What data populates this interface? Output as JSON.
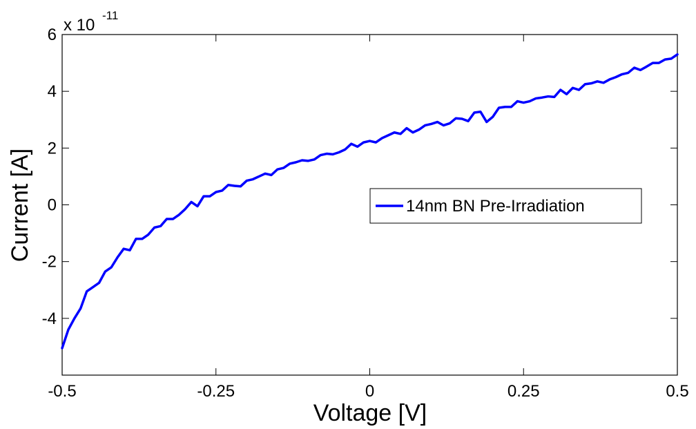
{
  "chart_data": {
    "type": "line",
    "title": "",
    "xlabel": "Voltage [V]",
    "ylabel": "Current [A]",
    "xlim": [
      -0.5,
      0.5
    ],
    "ylim": [
      -6,
      6
    ],
    "y_multiplier_label": "x 10",
    "y_multiplier_exponent": "-11",
    "x_ticks": [
      -0.5,
      -0.25,
      0,
      0.25,
      0.5
    ],
    "x_tick_labels": [
      "-0.5",
      "-0.25",
      "0",
      "0.25",
      "0.5"
    ],
    "y_ticks": [
      -4,
      -2,
      0,
      2,
      4,
      6
    ],
    "y_tick_labels": [
      "-4",
      "-2",
      "0",
      "2",
      "4",
      "6"
    ],
    "grid": false,
    "legend_position": "center-right",
    "series": [
      {
        "name": "14nm BN Pre-Irradiation",
        "color": "#0000ff",
        "x": [
          -0.5,
          -0.49,
          -0.48,
          -0.47,
          -0.46,
          -0.45,
          -0.44,
          -0.43,
          -0.42,
          -0.41,
          -0.4,
          -0.39,
          -0.38,
          -0.37,
          -0.36,
          -0.35,
          -0.34,
          -0.33,
          -0.32,
          -0.31,
          -0.3,
          -0.29,
          -0.28,
          -0.27,
          -0.26,
          -0.25,
          -0.24,
          -0.23,
          -0.22,
          -0.21,
          -0.2,
          -0.19,
          -0.18,
          -0.17,
          -0.16,
          -0.15,
          -0.14,
          -0.13,
          -0.12,
          -0.11,
          -0.1,
          -0.09,
          -0.08,
          -0.07,
          -0.06,
          -0.05,
          -0.04,
          -0.03,
          -0.02,
          -0.01,
          0,
          0.01,
          0.02,
          0.03,
          0.04,
          0.05,
          0.06,
          0.07,
          0.08,
          0.09,
          0.1,
          0.11,
          0.12,
          0.13,
          0.14,
          0.15,
          0.16,
          0.17,
          0.18,
          0.19,
          0.2,
          0.21,
          0.22,
          0.23,
          0.24,
          0.25,
          0.26,
          0.27,
          0.28,
          0.29,
          0.3,
          0.31,
          0.32,
          0.33,
          0.34,
          0.35,
          0.36,
          0.37,
          0.38,
          0.39,
          0.4,
          0.41,
          0.42,
          0.43,
          0.44,
          0.45,
          0.46,
          0.47,
          0.48,
          0.49,
          0.5
        ],
        "y": [
          -5.05,
          -4.4,
          -4.0,
          -3.65,
          -3.05,
          -2.9,
          -2.75,
          -2.35,
          -2.2,
          -1.85,
          -1.55,
          -1.6,
          -1.2,
          -1.2,
          -1.05,
          -0.8,
          -0.75,
          -0.5,
          -0.5,
          -0.35,
          -0.15,
          0.1,
          -0.05,
          0.3,
          0.3,
          0.45,
          0.5,
          0.7,
          0.67,
          0.65,
          0.85,
          0.9,
          1.0,
          1.1,
          1.05,
          1.25,
          1.3,
          1.45,
          1.5,
          1.57,
          1.55,
          1.6,
          1.75,
          1.8,
          1.78,
          1.85,
          1.95,
          2.15,
          2.05,
          2.2,
          2.25,
          2.2,
          2.35,
          2.45,
          2.55,
          2.5,
          2.7,
          2.55,
          2.65,
          2.8,
          2.85,
          2.92,
          2.8,
          2.87,
          3.05,
          3.03,
          2.95,
          3.25,
          3.28,
          2.92,
          3.1,
          3.42,
          3.45,
          3.45,
          3.65,
          3.6,
          3.65,
          3.75,
          3.78,
          3.82,
          3.8,
          4.05,
          3.9,
          4.12,
          4.05,
          4.25,
          4.28,
          4.35,
          4.3,
          4.42,
          4.5,
          4.6,
          4.65,
          4.83,
          4.75,
          4.87,
          5.0,
          5.0,
          5.12,
          5.15,
          5.3
        ]
      }
    ]
  }
}
